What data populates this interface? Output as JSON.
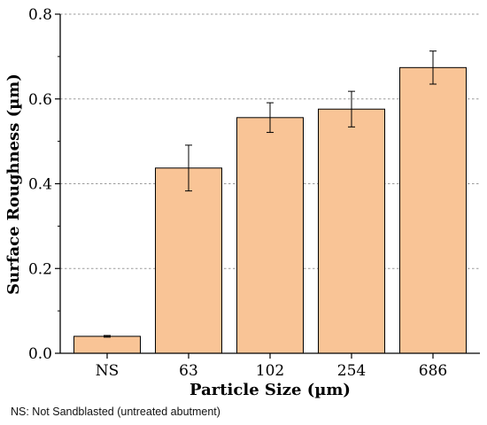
{
  "chart_data": {
    "type": "bar",
    "categories": [
      "NS",
      "63",
      "102",
      "254",
      "686"
    ],
    "values": [
      0.04,
      0.437,
      0.556,
      0.576,
      0.674
    ],
    "errors": [
      0.002,
      0.054,
      0.035,
      0.042,
      0.039
    ],
    "xlabel": "Particle Size (µm)",
    "ylabel": "Surface Roughness (µm)",
    "ylim": [
      0,
      0.8
    ],
    "yticks": [
      "0.0",
      "0.2",
      "0.4",
      "0.6",
      "0.8"
    ],
    "grid": "horizontal dashed",
    "bar_color": "#f9c496",
    "bar_edge_color": "#000000"
  },
  "footnote": "NS: Not Sandblasted (untreated abutment)"
}
